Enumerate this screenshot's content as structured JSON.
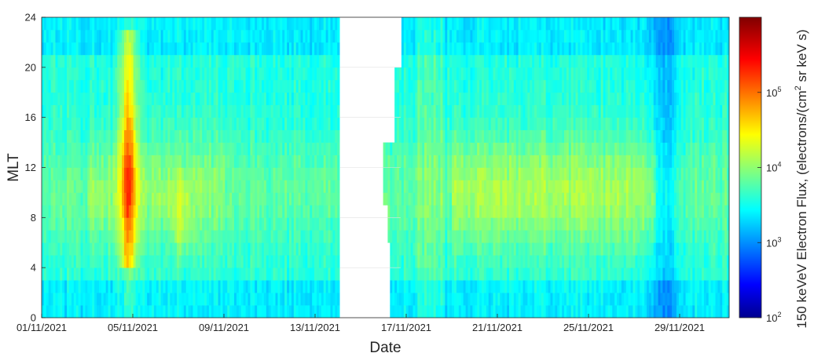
{
  "chart_data": {
    "type": "heatmap",
    "title": "",
    "xlabel": "Date",
    "ylabel": "MLT",
    "x_range": [
      "01/11/2021",
      "03/12/2021"
    ],
    "ylim": [
      0,
      24
    ],
    "x_ticks": [
      "01/11/2021",
      "05/11/2021",
      "09/11/2021",
      "13/11/2021",
      "17/11/2021",
      "21/11/2021",
      "25/11/2021",
      "29/11/2021"
    ],
    "y_ticks": [
      "0",
      "4",
      "8",
      "12",
      "16",
      "20",
      "24"
    ],
    "y_tick_values": [
      0,
      4,
      8,
      12,
      16,
      20,
      24
    ],
    "mlt_bin_width_hours": 1,
    "data_gap": {
      "start": "14/11/2021",
      "end": "16/11/2021",
      "description": "no data (white)"
    },
    "colormap": "jet",
    "colorbar": {
      "label": "150 keVeV Electron Flux, (electrons/(cm² sr keV s)",
      "label_main": "150 keVeV Electron Flux, (electrons/(cm",
      "label_sup": "2",
      "label_tail": " sr keV s)",
      "scale": "log",
      "range": [
        100,
        1000000
      ],
      "ticks": [
        {
          "base": "10",
          "exp": "2",
          "value": 100
        },
        {
          "base": "10",
          "exp": "3",
          "value": 1000
        },
        {
          "base": "10",
          "exp": "4",
          "value": 10000
        },
        {
          "base": "10",
          "exp": "5",
          "value": 100000
        }
      ]
    },
    "features": [
      {
        "date": "05/11/2021",
        "mlt_range": [
          4,
          22
        ],
        "peak_flux": 300000,
        "note": "storm-time enhancement"
      },
      {
        "dates": [
          "19/11/2021",
          "27/11/2021"
        ],
        "mlt_range": [
          6,
          16
        ],
        "flux": 15000,
        "note": "dayside enhancement"
      },
      {
        "date": "29/11/2021",
        "mlt_range": [
          0,
          24
        ],
        "flux": 1000,
        "note": "flux dropout"
      }
    ],
    "grid": true,
    "legend": "colorbar-right"
  },
  "colors": {
    "gap": "#ffffff",
    "grid": "#e0e0e0",
    "text": "#262626"
  }
}
